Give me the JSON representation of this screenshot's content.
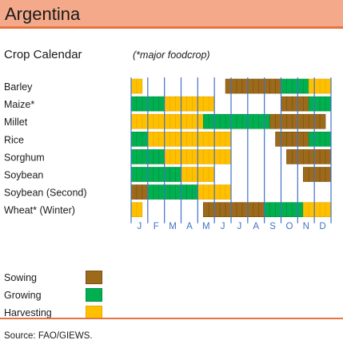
{
  "header": {
    "title": "Argentina"
  },
  "subtitle": "Crop Calendar",
  "note": "(*major foodcrop)",
  "source": "Source: FAO/GIEWS.",
  "colors": {
    "sowing": "#9c6a1a",
    "growing": "#00b050",
    "harvesting": "#ffc000",
    "month_line": "#4472c4"
  },
  "legend": [
    {
      "key": "sowing",
      "label": "Sowing"
    },
    {
      "key": "growing",
      "label": "Growing"
    },
    {
      "key": "harvesting",
      "label": "Harvesting"
    }
  ],
  "chart_data": {
    "type": "gantt",
    "months": [
      "J",
      "F",
      "M",
      "A",
      "M",
      "J",
      "J",
      "A",
      "S",
      "O",
      "N",
      "D"
    ],
    "units": "dekads (3 per month, 36 per year)",
    "crops": [
      {
        "name": "Barley",
        "segments": [
          {
            "stage": "harvesting",
            "start": 0,
            "end": 2
          },
          {
            "stage": "sowing",
            "start": 17,
            "end": 27
          },
          {
            "stage": "growing",
            "start": 27,
            "end": 32
          },
          {
            "stage": "harvesting",
            "start": 32,
            "end": 36
          }
        ]
      },
      {
        "name": "Maize*",
        "segments": [
          {
            "stage": "growing",
            "start": 0,
            "end": 6
          },
          {
            "stage": "harvesting",
            "start": 6,
            "end": 15
          },
          {
            "stage": "sowing",
            "start": 27,
            "end": 32
          },
          {
            "stage": "growing",
            "start": 32,
            "end": 36
          }
        ]
      },
      {
        "name": "Millet",
        "segments": [
          {
            "stage": "harvesting",
            "start": 0,
            "end": 13
          },
          {
            "stage": "growing",
            "start": 13,
            "end": 25
          },
          {
            "stage": "sowing",
            "start": 25,
            "end": 35
          }
        ]
      },
      {
        "name": "Rice",
        "segments": [
          {
            "stage": "growing",
            "start": 0,
            "end": 3
          },
          {
            "stage": "harvesting",
            "start": 3,
            "end": 18
          },
          {
            "stage": "sowing",
            "start": 26,
            "end": 32
          },
          {
            "stage": "growing",
            "start": 32,
            "end": 36
          }
        ]
      },
      {
        "name": "Sorghum",
        "segments": [
          {
            "stage": "growing",
            "start": 0,
            "end": 6
          },
          {
            "stage": "harvesting",
            "start": 6,
            "end": 18
          },
          {
            "stage": "sowing",
            "start": 28,
            "end": 36
          }
        ]
      },
      {
        "name": "Soybean",
        "segments": [
          {
            "stage": "growing",
            "start": 0,
            "end": 9
          },
          {
            "stage": "harvesting",
            "start": 9,
            "end": 15
          },
          {
            "stage": "sowing",
            "start": 31,
            "end": 36
          }
        ]
      },
      {
        "name": "Soybean (Second)",
        "segments": [
          {
            "stage": "sowing",
            "start": 0,
            "end": 3
          },
          {
            "stage": "growing",
            "start": 3,
            "end": 12
          },
          {
            "stage": "harvesting",
            "start": 12,
            "end": 18
          }
        ]
      },
      {
        "name": "Wheat* (Winter)",
        "segments": [
          {
            "stage": "harvesting",
            "start": 0,
            "end": 2
          },
          {
            "stage": "sowing",
            "start": 13,
            "end": 24
          },
          {
            "stage": "growing",
            "start": 24,
            "end": 31
          },
          {
            "stage": "harvesting",
            "start": 31,
            "end": 36
          }
        ]
      }
    ]
  }
}
